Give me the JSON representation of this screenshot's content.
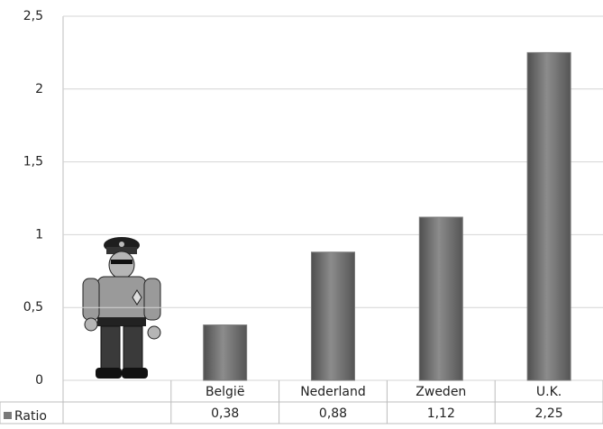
{
  "chart_data": {
    "type": "bar",
    "categories": [
      null,
      "België",
      "Nederland",
      "Zweden",
      "U.K."
    ],
    "series": [
      {
        "name": "Ratio",
        "color": "#7a7a7a",
        "values": [
          null,
          0.38,
          0.88,
          1.12,
          2.25
        ],
        "value_labels": [
          null,
          "0,38",
          "0,88",
          "1,12",
          "2,25"
        ]
      }
    ],
    "ylim": [
      0,
      2.5
    ],
    "yticks": [
      0,
      {
        "value": 0.5,
        "label": "0,5"
      },
      1,
      {
        "value": 1.5,
        "label": "1,5"
      },
      2,
      {
        "value": 2.5,
        "label": "2,5"
      }
    ],
    "grid": true
  }
}
